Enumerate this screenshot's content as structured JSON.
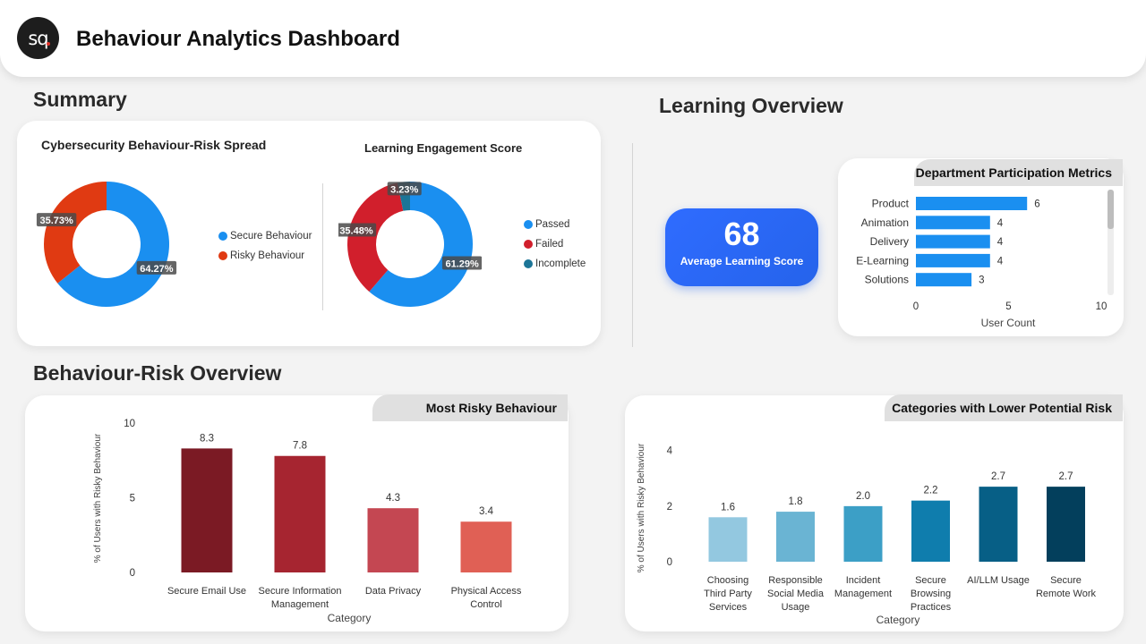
{
  "header": {
    "logo_text": "sq",
    "title": "Behaviour Analytics Dashboard"
  },
  "sections": {
    "summary": "Summary",
    "learning": "Learning Overview",
    "behaviour_risk": "Behaviour-Risk Overview"
  },
  "colors": {
    "secure": "#1a8ff0",
    "risky": "#e03a12",
    "passed": "#1a8ff0",
    "failed": "#d11f2c",
    "incomplete": "#1c7597",
    "dept_bar": "#1a8ff0"
  },
  "score": {
    "value": "68",
    "label": "Average Learning Score"
  },
  "chart_data": [
    {
      "type": "pie",
      "title": "Cybersecurity Behaviour-Risk Spread",
      "labels": [
        "Secure Behaviour",
        "Risky Behaviour"
      ],
      "values": [
        64.27,
        35.73
      ],
      "value_labels": [
        "64.27%",
        "35.73%"
      ],
      "colors": [
        "#1a8ff0",
        "#e03a12"
      ],
      "legend": "right"
    },
    {
      "type": "pie",
      "title": "Learning Engagement Score",
      "labels": [
        "Passed",
        "Failed",
        "Incomplete"
      ],
      "values": [
        61.29,
        35.48,
        3.23
      ],
      "value_labels": [
        "61.29%",
        "35.48%",
        "3.23%"
      ],
      "colors": [
        "#1a8ff0",
        "#d11f2c",
        "#1c7597"
      ],
      "legend": "right"
    },
    {
      "type": "bar",
      "orientation": "horizontal",
      "title": "Department Participation Metrics",
      "categories": [
        "Product",
        "Animation",
        "Delivery",
        "E-Learning",
        "Solutions"
      ],
      "values": [
        6,
        4,
        4,
        4,
        3
      ],
      "xlabel": "User Count",
      "xlim": [
        0,
        10
      ],
      "xticks": [
        "0",
        "5",
        "10"
      ]
    },
    {
      "type": "bar",
      "title": "Most Risky Behaviour",
      "categories": [
        "Secure Email Use",
        "Secure Information Management",
        "Data Privacy",
        "Physical Access Control"
      ],
      "tick_lines": [
        [
          "Secure Email Use"
        ],
        [
          "Secure Information",
          "Management"
        ],
        [
          "Data Privacy"
        ],
        [
          "Physical Access",
          "Control"
        ]
      ],
      "values": [
        8.3,
        7.8,
        4.3,
        3.4
      ],
      "value_labels": [
        "8.3",
        "7.8",
        "4.3",
        "3.4"
      ],
      "colors": [
        "#7b1a24",
        "#a62530",
        "#c44752",
        "#e06055"
      ],
      "xlabel": "Category",
      "ylabel": "% of Users with Risky Behaviour",
      "ylim": [
        0,
        10
      ],
      "yticks": [
        "0",
        "5",
        "10"
      ]
    },
    {
      "type": "bar",
      "title": "Categories with Lower Potential Risk",
      "categories": [
        "Choosing Third Party Services",
        "Responsible Social Media Usage",
        "Incident Management",
        "Secure Browsing Practices",
        "AI/LLM Usage",
        "Secure Remote Work"
      ],
      "tick_lines": [
        [
          "Choosing",
          "Third Party",
          "Services"
        ],
        [
          "Responsible",
          "Social Media",
          "Usage"
        ],
        [
          "Incident",
          "Management"
        ],
        [
          "Secure",
          "Browsing",
          "Practices"
        ],
        [
          "AI/LLM Usage"
        ],
        [
          "Secure",
          "Remote Work"
        ]
      ],
      "values": [
        1.6,
        1.8,
        2.0,
        2.2,
        2.7,
        2.7
      ],
      "value_labels": [
        "1.6",
        "1.8",
        "2.0",
        "2.2",
        "2.7",
        "2.7"
      ],
      "colors": [
        "#93c8e0",
        "#6ab4d3",
        "#3c9fc6",
        "#0f7dad",
        "#075f86",
        "#033f5c"
      ],
      "xlabel": "Category",
      "ylabel": "% of Users with Risky Behaviour",
      "ylim": [
        0,
        4.7
      ],
      "yticks": [
        "0",
        "2",
        "4"
      ]
    }
  ]
}
